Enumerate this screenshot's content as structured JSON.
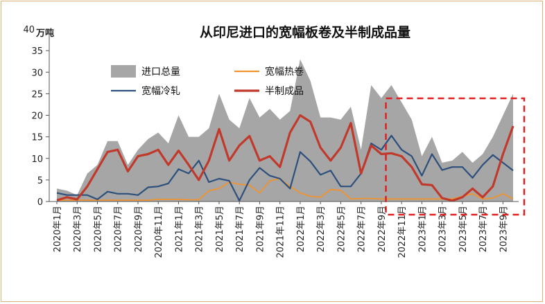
{
  "chart_data": {
    "type": "line",
    "title": "从印尼进口的宽幅板卷及半制成品量",
    "ylabel": "万吨",
    "ylim": [
      0,
      40
    ],
    "yticks": [
      0,
      5,
      10,
      15,
      20,
      25,
      30,
      35,
      40
    ],
    "legend_position": "top-left",
    "x": [
      "2020年1月",
      "2020年2月",
      "2020年3月",
      "2020年4月",
      "2020年5月",
      "2020年6月",
      "2020年7月",
      "2020年8月",
      "2020年9月",
      "2020年10月",
      "2020年11月",
      "2020年12月",
      "2021年1月",
      "2021年2月",
      "2021年3月",
      "2021年4月",
      "2021年5月",
      "2021年6月",
      "2021年7月",
      "2021年8月",
      "2021年9月",
      "2021年10月",
      "2021年11月",
      "2021年12月",
      "2022年1月",
      "2022年2月",
      "2022年3月",
      "2022年4月",
      "2022年5月",
      "2022年6月",
      "2022年7月",
      "2022年8月",
      "2022年9月",
      "2022年10月",
      "2022年11月",
      "2022年12月",
      "2023年1月",
      "2023年2月",
      "2023年3月",
      "2023年4月",
      "2023年5月",
      "2023年6月",
      "2023年7月",
      "2023年8月",
      "2023年9月",
      "2023年10月"
    ],
    "xtick_labels": [
      "2020年1月",
      "2020年3月",
      "2020年5月",
      "2020年7月",
      "2020年9月",
      "2020年11月",
      "2021年1月",
      "2021年3月",
      "2021年5月",
      "2021年7月",
      "2021年9月",
      "2021年11月",
      "2022年1月",
      "2022年3月",
      "2022年5月",
      "2022年7月",
      "2022年9月",
      "2022年11月",
      "2023年1月",
      "2023年3月",
      "2023年5月",
      "2023年7月",
      "2023年9月"
    ],
    "series": [
      {
        "name": "进口总量",
        "type": "area",
        "color": "#a6a6a6",
        "values": [
          3,
          2.5,
          1.5,
          6.5,
          8.5,
          14,
          14,
          8.5,
          12,
          14.5,
          16,
          13.5,
          20,
          15,
          15,
          17,
          25,
          19,
          17,
          24,
          19.5,
          21.5,
          19,
          21,
          33,
          28,
          19.5,
          19.5,
          19,
          22,
          12,
          27,
          24,
          27,
          23,
          19,
          10.5,
          15,
          9,
          9.5,
          11.5,
          9,
          11,
          15,
          20,
          25
        ]
      },
      {
        "name": "宽幅热卷",
        "type": "line",
        "color": "#f0932f",
        "values": [
          0.3,
          0.3,
          0.3,
          0.3,
          0.3,
          0.3,
          0.3,
          0.3,
          0.3,
          0.3,
          0.5,
          0.5,
          0.5,
          0.4,
          0.4,
          2.5,
          3,
          4.5,
          4,
          3.8,
          2,
          4.8,
          5.3,
          3.5,
          2,
          1.2,
          1,
          2.8,
          2.6,
          0.6,
          0.7,
          0.7,
          0.6,
          0.6,
          0.6,
          0.6,
          0.6,
          0.6,
          0.6,
          0.6,
          1.2,
          1.8,
          0.6,
          0.8,
          1.8,
          0.6
        ]
      },
      {
        "name": "宽幅冷轧",
        "type": "line",
        "color": "#2c4f7c",
        "values": [
          2,
          1.5,
          1.5,
          1.5,
          0.5,
          2.3,
          1.8,
          1.8,
          1.5,
          3.3,
          3.5,
          4.2,
          7.5,
          6.5,
          9.5,
          4.5,
          5.3,
          4.8,
          0.2,
          5,
          7.8,
          6,
          5.3,
          3,
          11.5,
          9.3,
          6.2,
          7.2,
          3.5,
          3.5,
          6.5,
          13.5,
          12,
          15.3,
          12,
          10.5,
          6,
          11,
          7.3,
          8,
          8,
          5.5,
          8.5,
          10.8,
          9,
          7.2
        ]
      },
      {
        "name": "半制成品",
        "type": "line",
        "color": "#c0392b",
        "values": [
          0.3,
          1,
          0.5,
          3.5,
          7.5,
          11.5,
          12,
          7,
          10.5,
          11,
          12,
          8.5,
          11.8,
          8.5,
          5,
          9.5,
          16.8,
          9.5,
          13,
          15.2,
          9.5,
          10.5,
          8,
          16,
          20,
          18.5,
          12.5,
          9.5,
          12.5,
          18.2,
          6.5,
          13,
          11,
          11.2,
          10.5,
          8,
          4,
          3.8,
          0.8,
          0.2,
          1,
          3,
          1,
          3.5,
          11,
          17.5
        ]
      }
    ],
    "annotations": [
      {
        "type": "dashed-box",
        "color": "#e02020",
        "from": "2022年10月",
        "to": "2023年10月"
      }
    ]
  }
}
